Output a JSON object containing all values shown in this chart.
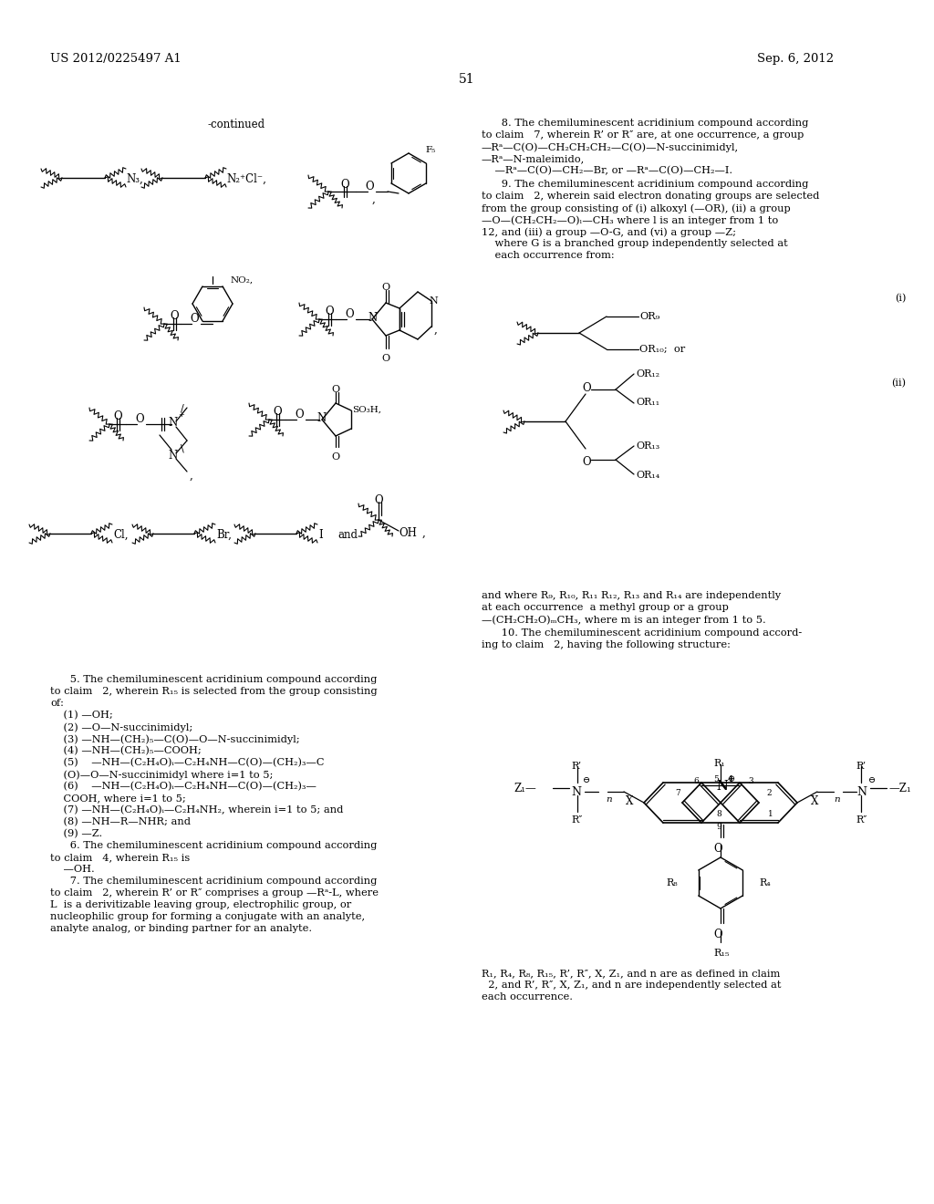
{
  "page_number": "51",
  "patent_number": "US 2012/0225497 A1",
  "patent_date": "Sep. 6, 2012",
  "bg": "#ffffff"
}
